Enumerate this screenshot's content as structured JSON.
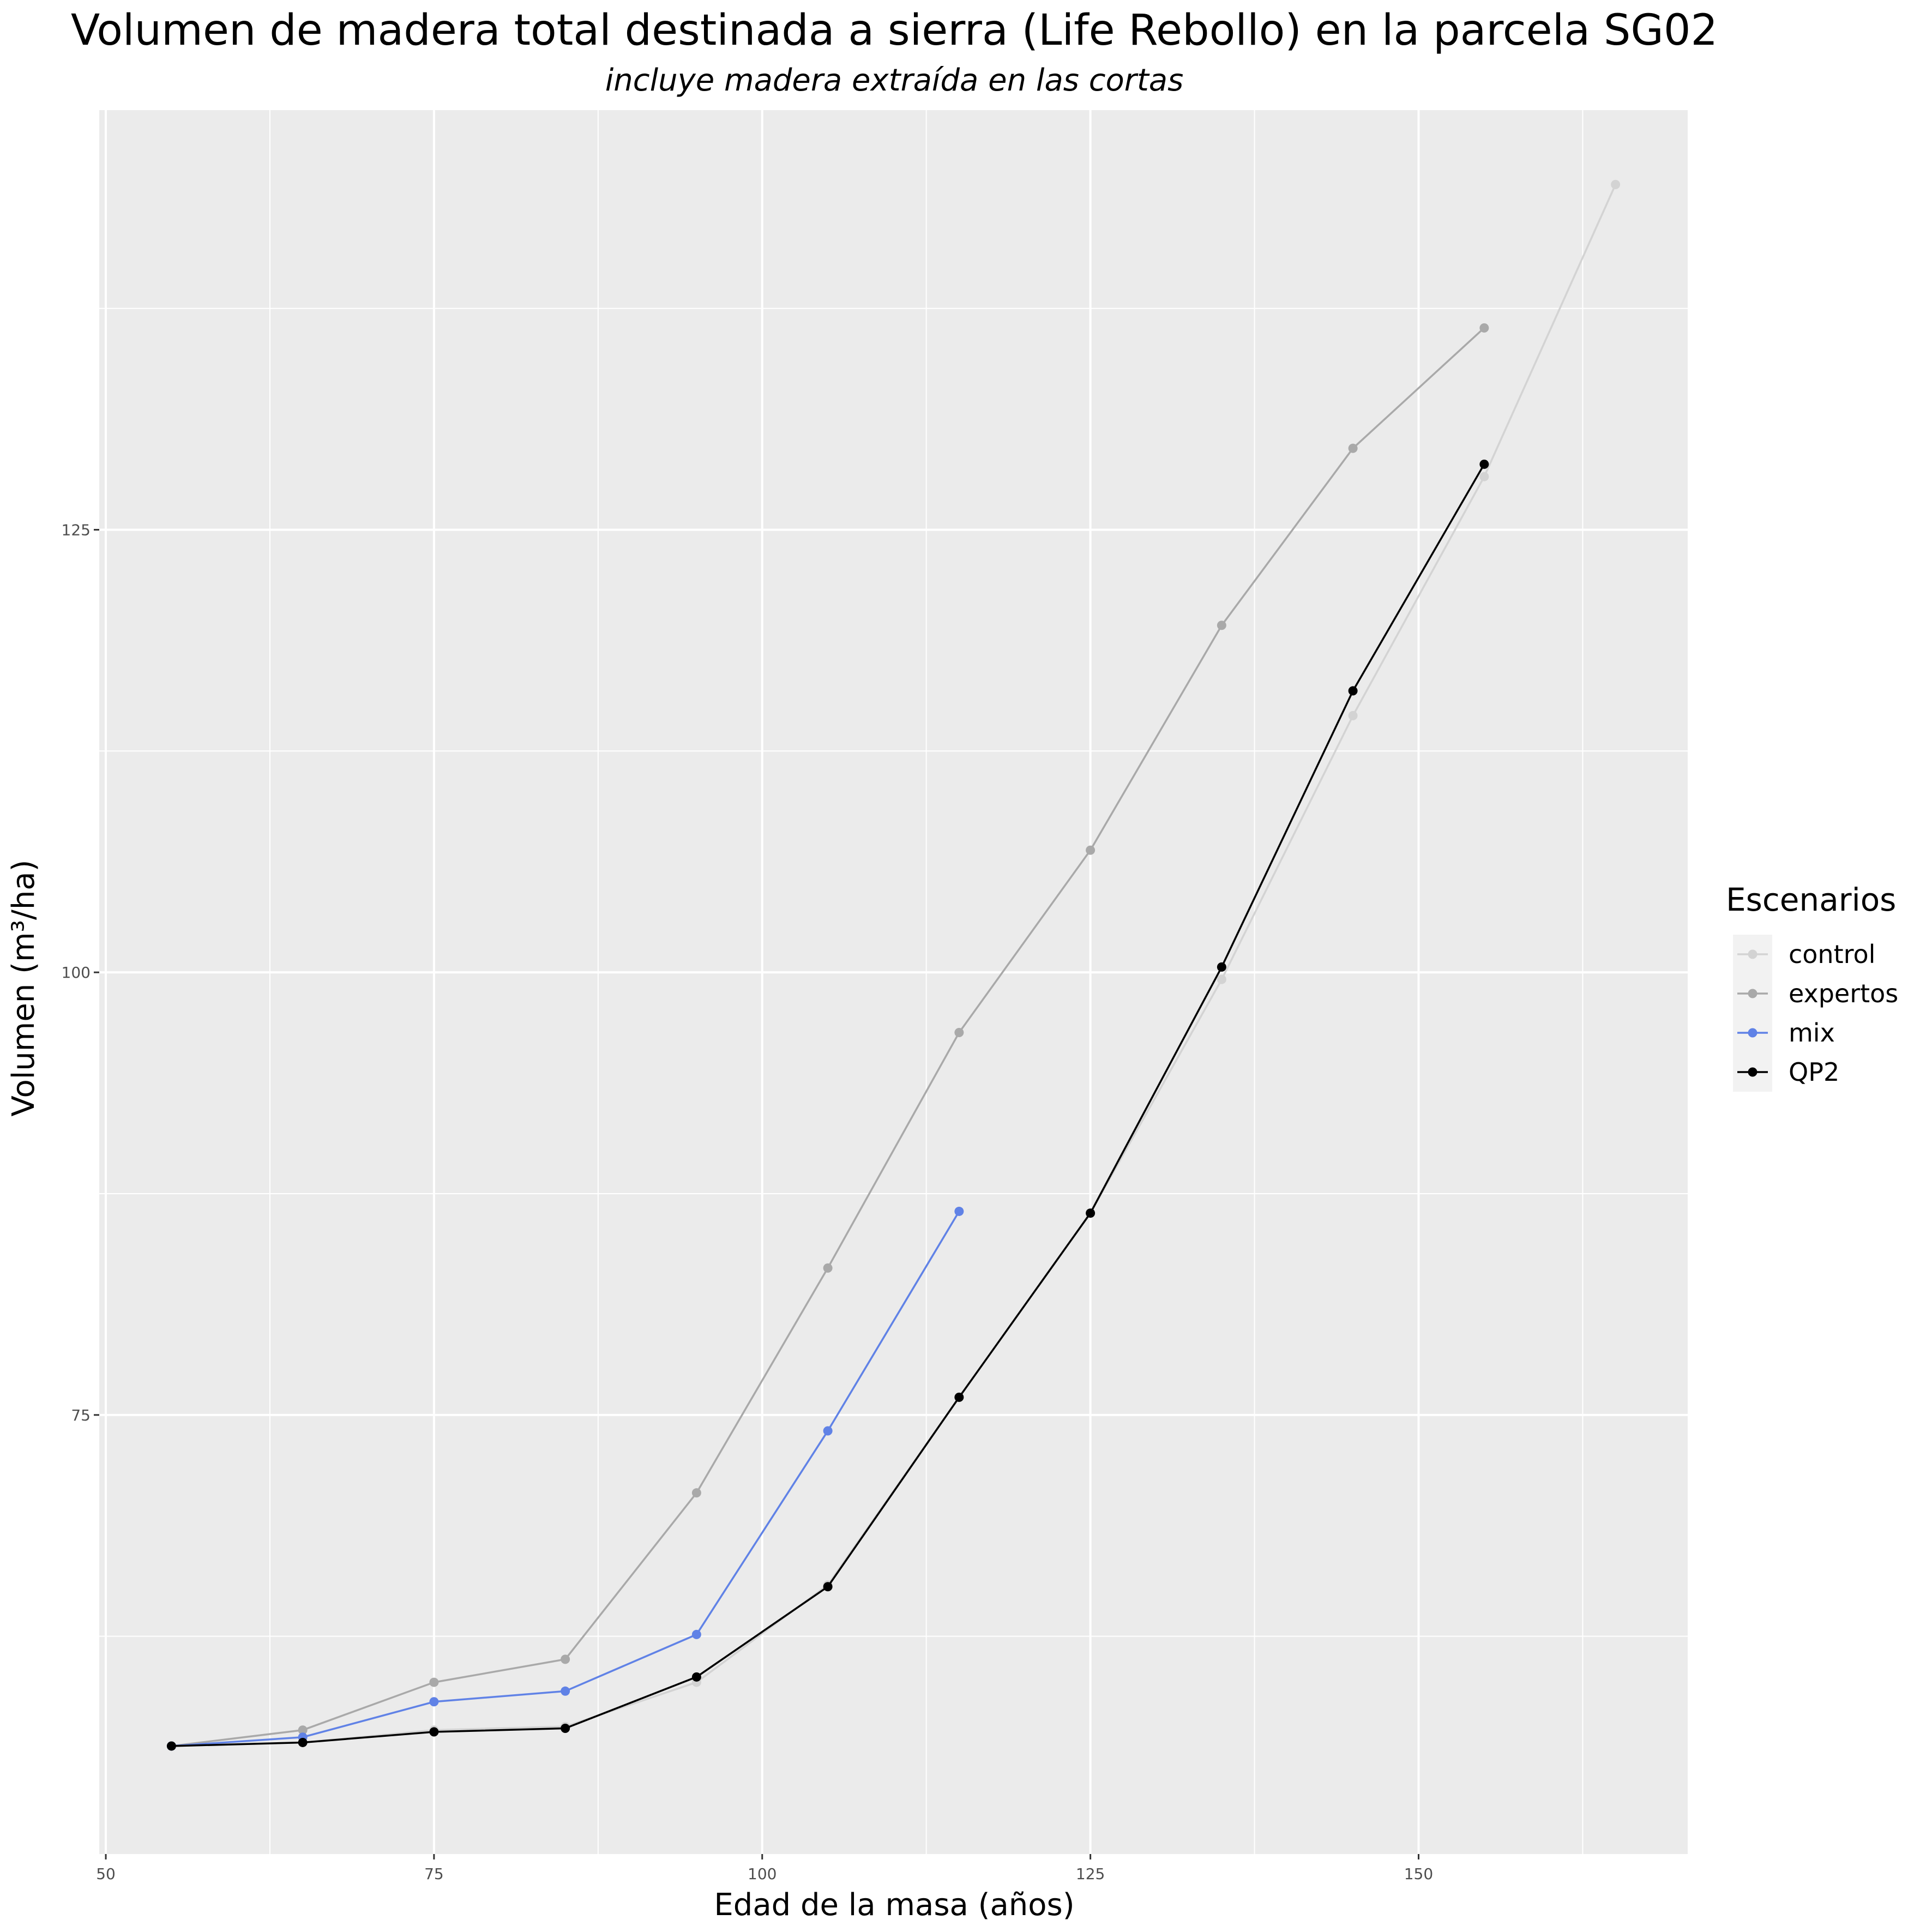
{
  "chart_data": {
    "type": "line",
    "title": "Volumen de madera total destinada a sierra (Life Rebollo) en la parcela SG02",
    "subtitle": "incluye madera extraída en las cortas",
    "xlabel": "Edad de la masa (años)",
    "ylabel": "Volumen (m³/ha)",
    "xlim": [
      49.5,
      170.5
    ],
    "ylim": [
      50.2,
      148.7
    ],
    "x_ticks": [
      50,
      75,
      100,
      125,
      150
    ],
    "y_ticks": [
      75,
      100,
      125
    ],
    "grid": true,
    "legend_title": "Escenarios",
    "legend_position": "right",
    "series": [
      {
        "name": "control",
        "color": "#d3d3d3",
        "x": [
          55,
          65,
          75,
          85,
          95,
          105,
          115,
          125,
          135,
          145,
          155,
          165
        ],
        "y": [
          56.3,
          56.5,
          57.2,
          57.4,
          59.9,
          65.4,
          76.0,
          86.4,
          99.6,
          114.5,
          128.0,
          144.5
        ]
      },
      {
        "name": "expertos",
        "color": "#a9a9a9",
        "x": [
          55,
          65,
          75,
          85,
          95,
          105,
          115,
          125,
          135,
          145,
          155
        ],
        "y": [
          56.3,
          57.2,
          59.9,
          61.2,
          70.6,
          83.3,
          96.6,
          106.9,
          119.6,
          129.6,
          136.4
        ]
      },
      {
        "name": "mix",
        "color": "#6082e6",
        "x": [
          55,
          65,
          75,
          85,
          95,
          105,
          115
        ],
        "y": [
          56.3,
          56.8,
          58.8,
          59.4,
          62.6,
          74.1,
          86.5
        ]
      },
      {
        "name": "QP2",
        "color": "#000000",
        "x": [
          55,
          65,
          75,
          85,
          95,
          105,
          115,
          125,
          135,
          145,
          155
        ],
        "y": [
          56.3,
          56.5,
          57.1,
          57.3,
          60.2,
          65.3,
          76.0,
          86.4,
          100.3,
          115.9,
          128.7
        ]
      }
    ]
  }
}
